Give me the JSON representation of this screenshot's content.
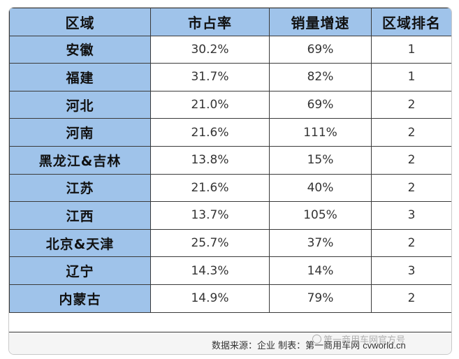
{
  "table": {
    "headers": [
      "区域",
      "市占率",
      "销量增速",
      "区域排名"
    ],
    "rows": [
      {
        "region": "安徽",
        "share": "30.2%",
        "growth": "69%",
        "rank": "1"
      },
      {
        "region": "福建",
        "share": "31.7%",
        "growth": "82%",
        "rank": "1"
      },
      {
        "region": "河北",
        "share": "21.0%",
        "growth": "69%",
        "rank": "2"
      },
      {
        "region": "河南",
        "share": "21.6%",
        "growth": "111%",
        "rank": "2"
      },
      {
        "region": "黑龙江&吉林",
        "share": "13.8%",
        "growth": "15%",
        "rank": "2"
      },
      {
        "region": "江苏",
        "share": "21.6%",
        "growth": "40%",
        "rank": "2"
      },
      {
        "region": "江西",
        "share": "13.7%",
        "growth": "105%",
        "rank": "3"
      },
      {
        "region": "北京&天津",
        "share": "25.7%",
        "growth": "37%",
        "rank": "2"
      },
      {
        "region": "辽宁",
        "share": "14.3%",
        "growth": "14%",
        "rank": "3"
      },
      {
        "region": "内蒙古",
        "share": "14.9%",
        "growth": "79%",
        "rank": "2"
      }
    ]
  },
  "footer": {
    "source_text": "数据来源：企业 制表：第一商用车网",
    "site": "cvworld.cn",
    "watermark": "第一商用车网官方号"
  },
  "colors": {
    "header_fill": "#9fc3ea",
    "border": "#3a3a3a",
    "cell_fill": "#ffffff"
  }
}
